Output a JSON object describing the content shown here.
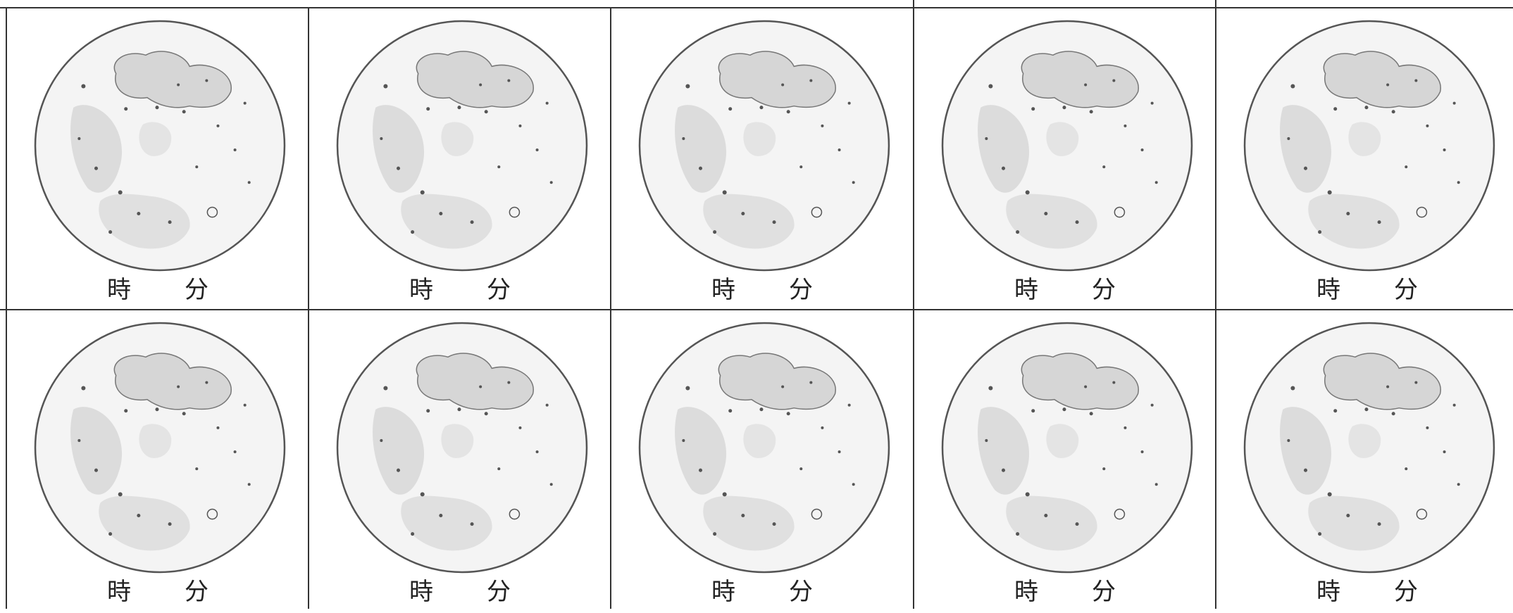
{
  "worksheet": {
    "cells": [
      {
        "hour_label": "時",
        "minute_label": "分"
      },
      {
        "hour_label": "時",
        "minute_label": "分"
      },
      {
        "hour_label": "時",
        "minute_label": "分"
      },
      {
        "hour_label": "時",
        "minute_label": "分"
      },
      {
        "hour_label": "時",
        "minute_label": "分"
      },
      {
        "hour_label": "時",
        "minute_label": "分"
      },
      {
        "hour_label": "時",
        "minute_label": "分"
      },
      {
        "hour_label": "時",
        "minute_label": "分"
      },
      {
        "hour_label": "時",
        "minute_label": "分"
      },
      {
        "hour_label": "時",
        "minute_label": "分"
      }
    ],
    "moon_image": "full-moon-illustration",
    "colors": {
      "line": "#333333",
      "moon_fill": "#f4f4f4",
      "maria": "#d6d6d6",
      "crater_dots": "#555555"
    }
  }
}
